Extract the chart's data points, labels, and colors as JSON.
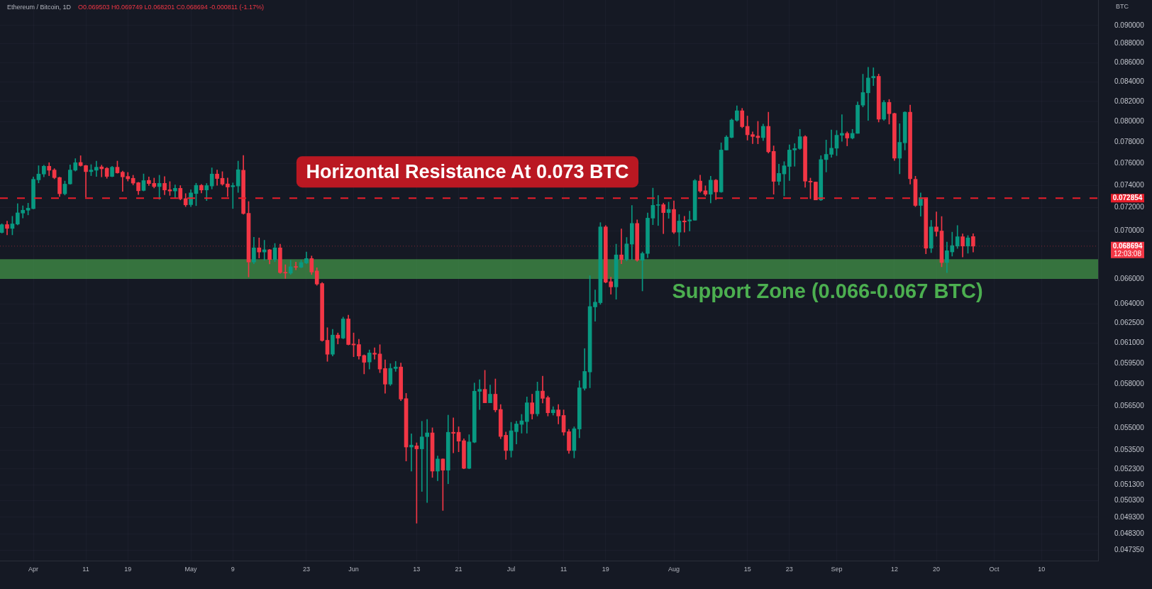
{
  "chart_data": {
    "type": "candlestick",
    "title": "Ethereum / Bitcoin, 1D",
    "subtitle": "O0.069503 H0.069749 L0.068201 C0.068694 -0.000811 (-1.17%)",
    "ylabel": "BTC",
    "x": [
      "--03-26",
      "--03-27",
      "--03-28",
      "--03-29",
      "--03-30",
      "--03-31",
      "--04-01",
      "--04-02",
      "--04-03",
      "--04-04",
      "--04-05",
      "--04-06",
      "--04-07",
      "--04-08",
      "--04-09",
      "--04-10",
      "--04-11",
      "--04-12",
      "--04-13",
      "--04-14",
      "--04-15",
      "--04-16",
      "--04-17",
      "--04-18",
      "--04-19",
      "--04-20",
      "--04-21",
      "--04-22",
      "--04-23",
      "--04-24",
      "--04-25",
      "--04-26",
      "--04-27",
      "--04-28",
      "--04-29",
      "--04-30",
      "--05-01",
      "--05-02",
      "--05-03",
      "--05-04",
      "--05-05",
      "--05-06",
      "--05-07",
      "--05-08",
      "--05-09",
      "--05-10",
      "--05-11",
      "--05-12",
      "--05-13",
      "--05-14",
      "--05-15",
      "--05-16",
      "--05-17",
      "--05-18",
      "--05-19",
      "--05-20",
      "--05-21",
      "--05-22",
      "--05-23",
      "--05-24",
      "--05-25",
      "--05-26",
      "--05-27",
      "--05-28",
      "--05-29",
      "--05-30",
      "--05-31",
      "--06-01",
      "--06-02",
      "--06-03",
      "--06-04",
      "--06-05",
      "--06-06",
      "--06-07",
      "--06-08",
      "--06-09",
      "--06-10",
      "--06-11",
      "--06-12",
      "--06-13",
      "--06-14",
      "--06-15",
      "--06-16",
      "--06-17",
      "--06-18",
      "--06-19",
      "--06-20",
      "--06-21",
      "--06-22",
      "--06-23",
      "--06-24",
      "--06-25",
      "--06-26",
      "--06-27",
      "--06-28",
      "--06-29",
      "--06-30",
      "--07-01",
      "--07-02",
      "--07-03",
      "--07-04",
      "--07-05",
      "--07-06",
      "--07-07",
      "--07-08",
      "--07-09",
      "--07-10",
      "--07-11",
      "--07-12",
      "--07-13",
      "--07-14",
      "--07-15",
      "--07-16",
      "--07-17",
      "--07-18",
      "--07-19",
      "--07-20",
      "--07-21",
      "--07-22",
      "--07-23",
      "--07-24",
      "--07-25",
      "--07-26",
      "--07-27",
      "--07-28",
      "--07-29",
      "--07-30",
      "--07-31",
      "--08-01",
      "--08-02",
      "--08-03",
      "--08-04",
      "--08-05",
      "--08-06",
      "--08-07",
      "--08-08",
      "--08-09",
      "--08-10",
      "--08-11",
      "--08-12",
      "--08-13",
      "--08-14",
      "--08-15",
      "--08-16",
      "--08-17",
      "--08-18",
      "--08-19",
      "--08-20",
      "--08-21",
      "--08-22",
      "--08-23",
      "--08-24",
      "--08-25",
      "--08-26",
      "--08-27",
      "--08-28",
      "--08-29",
      "--08-30",
      "--08-31",
      "--09-01",
      "--09-02",
      "--09-03",
      "--09-04",
      "--09-05",
      "--09-06",
      "--09-07",
      "--09-08",
      "--09-09",
      "--09-10",
      "--09-11",
      "--09-12",
      "--09-13",
      "--09-14",
      "--09-15",
      "--09-16",
      "--09-17",
      "--09-18",
      "--09-19",
      "--09-20",
      "--09-21",
      "--09-22",
      "--09-23",
      "--09-24",
      "--09-25",
      "--09-26",
      "--09-27"
    ],
    "ohlc": [
      [
        0.06985,
        0.0706,
        0.0698,
        0.07052
      ],
      [
        0.07053,
        0.07083,
        0.06965,
        0.0702
      ],
      [
        0.0702,
        0.07125,
        0.06965,
        0.07059
      ],
      [
        0.07057,
        0.07236,
        0.0705,
        0.07155
      ],
      [
        0.07153,
        0.07217,
        0.0711,
        0.07178
      ],
      [
        0.07178,
        0.0724,
        0.07137,
        0.07196
      ],
      [
        0.07192,
        0.07477,
        0.0719,
        0.07455
      ],
      [
        0.0745,
        0.0758,
        0.07422,
        0.07503
      ],
      [
        0.07503,
        0.07585,
        0.07477,
        0.07575
      ],
      [
        0.07575,
        0.07608,
        0.07488,
        0.07538
      ],
      [
        0.0754,
        0.07553,
        0.07459,
        0.0747
      ],
      [
        0.07471,
        0.07475,
        0.07299,
        0.07324
      ],
      [
        0.07324,
        0.07439,
        0.07313,
        0.07411
      ],
      [
        0.07413,
        0.07588,
        0.07409,
        0.0754
      ],
      [
        0.07538,
        0.07646,
        0.0753,
        0.07608
      ],
      [
        0.0761,
        0.07673,
        0.07575,
        0.07581
      ],
      [
        0.07581,
        0.07585,
        0.07295,
        0.07525
      ],
      [
        0.07525,
        0.0759,
        0.07488,
        0.0754
      ],
      [
        0.07538,
        0.07623,
        0.07481,
        0.07566
      ],
      [
        0.07569,
        0.07585,
        0.07477,
        0.07551
      ],
      [
        0.07556,
        0.07564,
        0.07464,
        0.07481
      ],
      [
        0.07481,
        0.07575,
        0.07477,
        0.07566
      ],
      [
        0.07566,
        0.07623,
        0.0751,
        0.07514
      ],
      [
        0.0752,
        0.0753,
        0.07345,
        0.07477
      ],
      [
        0.07481,
        0.07518,
        0.07439,
        0.07459
      ],
      [
        0.07464,
        0.07492,
        0.07404,
        0.0742
      ],
      [
        0.07424,
        0.07428,
        0.07317,
        0.07351
      ],
      [
        0.07354,
        0.07504,
        0.07349,
        0.07443
      ],
      [
        0.07445,
        0.07477,
        0.07398,
        0.07416
      ],
      [
        0.07418,
        0.07466,
        0.07376,
        0.07389
      ],
      [
        0.07389,
        0.07492,
        0.07274,
        0.07418
      ],
      [
        0.07418,
        0.07479,
        0.07315,
        0.07358
      ],
      [
        0.0736,
        0.07434,
        0.07309,
        0.07349
      ],
      [
        0.07349,
        0.07404,
        0.07284,
        0.07373
      ],
      [
        0.07373,
        0.07398,
        0.07269,
        0.07278
      ],
      [
        0.07281,
        0.07326,
        0.0721,
        0.07225
      ],
      [
        0.07227,
        0.0736,
        0.0721,
        0.07332
      ],
      [
        0.07326,
        0.07419,
        0.07218,
        0.074
      ],
      [
        0.074,
        0.07409,
        0.07332,
        0.07358
      ],
      [
        0.07358,
        0.07417,
        0.07263,
        0.07398
      ],
      [
        0.07394,
        0.0756,
        0.07367,
        0.07503
      ],
      [
        0.07503,
        0.0754,
        0.074,
        0.07462
      ],
      [
        0.07464,
        0.07525,
        0.074,
        0.07411
      ],
      [
        0.07413,
        0.07466,
        0.07299,
        0.07385
      ],
      [
        0.07387,
        0.07422,
        0.07193,
        0.07398
      ],
      [
        0.07394,
        0.07623,
        0.07336,
        0.07543
      ],
      [
        0.07538,
        0.07675,
        0.07143,
        0.07149
      ],
      [
        0.07151,
        0.07255,
        0.06615,
        0.06737
      ],
      [
        0.06737,
        0.06945,
        0.06723,
        0.06855
      ],
      [
        0.06855,
        0.06939,
        0.0677,
        0.0682
      ],
      [
        0.0682,
        0.06919,
        0.06752,
        0.06839
      ],
      [
        0.06839,
        0.06843,
        0.06722,
        0.06758
      ],
      [
        0.06757,
        0.06892,
        0.0674,
        0.06855
      ],
      [
        0.06855,
        0.06886,
        0.06645,
        0.06651
      ],
      [
        0.06653,
        0.06715,
        0.06603,
        0.06647
      ],
      [
        0.06646,
        0.06752,
        0.06635,
        0.06698
      ],
      [
        0.06698,
        0.06737,
        0.06674,
        0.06694
      ],
      [
        0.06694,
        0.06752,
        0.0669,
        0.06733
      ],
      [
        0.0673,
        0.06821,
        0.06723,
        0.06766
      ],
      [
        0.06766,
        0.06787,
        0.06635,
        0.06655
      ],
      [
        0.06664,
        0.0669,
        0.06548,
        0.06558
      ],
      [
        0.06562,
        0.06571,
        0.06115,
        0.0612
      ],
      [
        0.06122,
        0.06217,
        0.05966,
        0.06018
      ],
      [
        0.06018,
        0.06205,
        0.06005,
        0.06161
      ],
      [
        0.06161,
        0.06177,
        0.06094,
        0.06138
      ],
      [
        0.06138,
        0.06298,
        0.06133,
        0.06284
      ],
      [
        0.06284,
        0.06313,
        0.06087,
        0.0609
      ],
      [
        0.06094,
        0.06177,
        0.06,
        0.06087
      ],
      [
        0.0609,
        0.06129,
        0.05982,
        0.06005
      ],
      [
        0.06009,
        0.06014,
        0.05875,
        0.05959
      ],
      [
        0.05961,
        0.0605,
        0.0591,
        0.06028
      ],
      [
        0.06026,
        0.06066,
        0.05982,
        0.06018
      ],
      [
        0.0602,
        0.06089,
        0.05884,
        0.0591
      ],
      [
        0.05914,
        0.05977,
        0.05738,
        0.05802
      ],
      [
        0.05802,
        0.05949,
        0.05792,
        0.05915
      ],
      [
        0.05914,
        0.05966,
        0.05893,
        0.05925
      ],
      [
        0.05925,
        0.05954,
        0.05686,
        0.05697
      ],
      [
        0.057,
        0.05737,
        0.05281,
        0.05372
      ],
      [
        0.05372,
        0.0546,
        0.05216,
        0.05385
      ],
      [
        0.0538,
        0.054,
        0.04894,
        0.0536
      ],
      [
        0.0536,
        0.05544,
        0.05088,
        0.05439
      ],
      [
        0.05441,
        0.05557,
        0.05019,
        0.05466
      ],
      [
        0.05466,
        0.055,
        0.05176,
        0.05216
      ],
      [
        0.05216,
        0.05314,
        0.05155,
        0.05294
      ],
      [
        0.05294,
        0.05296,
        0.04971,
        0.05222
      ],
      [
        0.05222,
        0.05586,
        0.05136,
        0.0547
      ],
      [
        0.0547,
        0.05568,
        0.05334,
        0.05463
      ],
      [
        0.0547,
        0.05507,
        0.05341,
        0.05411
      ],
      [
        0.05414,
        0.05427,
        0.05231,
        0.05234
      ],
      [
        0.05234,
        0.05454,
        0.05231,
        0.05406
      ],
      [
        0.05404,
        0.0581,
        0.054,
        0.05752
      ],
      [
        0.05751,
        0.05834,
        0.05624,
        0.05765
      ],
      [
        0.05765,
        0.05901,
        0.05671,
        0.05671
      ],
      [
        0.05671,
        0.05796,
        0.05671,
        0.05731
      ],
      [
        0.05731,
        0.05839,
        0.05608,
        0.05622
      ],
      [
        0.05625,
        0.05659,
        0.05427,
        0.05442
      ],
      [
        0.0545,
        0.05471,
        0.05291,
        0.05349
      ],
      [
        0.05349,
        0.05537,
        0.05306,
        0.0548
      ],
      [
        0.05474,
        0.05544,
        0.05392,
        0.05526
      ],
      [
        0.05523,
        0.05591,
        0.05464,
        0.05547
      ],
      [
        0.05542,
        0.05712,
        0.05464,
        0.05671
      ],
      [
        0.05671,
        0.05731,
        0.05559,
        0.05595
      ],
      [
        0.05595,
        0.05817,
        0.0558,
        0.05753
      ],
      [
        0.05753,
        0.05859,
        0.05669,
        0.05702
      ],
      [
        0.05707,
        0.05718,
        0.0558,
        0.05602
      ],
      [
        0.05602,
        0.05644,
        0.05586,
        0.05622
      ],
      [
        0.05622,
        0.05659,
        0.05526,
        0.0558
      ],
      [
        0.05584,
        0.05622,
        0.0545,
        0.05471
      ],
      [
        0.05474,
        0.0549,
        0.05331,
        0.05349
      ],
      [
        0.05349,
        0.05507,
        0.05301,
        0.05494
      ],
      [
        0.05492,
        0.05826,
        0.05433,
        0.05776
      ],
      [
        0.05772,
        0.0606,
        0.05759,
        0.05893
      ],
      [
        0.05889,
        0.06625,
        0.05776,
        0.0638
      ],
      [
        0.06377,
        0.06511,
        0.06266,
        0.06414
      ],
      [
        0.0641,
        0.0707,
        0.06397,
        0.07033
      ],
      [
        0.07033,
        0.07045,
        0.06567,
        0.06573
      ],
      [
        0.06577,
        0.06613,
        0.06477,
        0.06535
      ],
      [
        0.06535,
        0.06886,
        0.06437,
        0.06796
      ],
      [
        0.06796,
        0.07016,
        0.06723,
        0.06757
      ],
      [
        0.06757,
        0.06943,
        0.06747,
        0.06888
      ],
      [
        0.06886,
        0.0722,
        0.06757,
        0.07063
      ],
      [
        0.07063,
        0.07094,
        0.06743,
        0.06752
      ],
      [
        0.06752,
        0.06821,
        0.06503,
        0.06808
      ],
      [
        0.06808,
        0.07154,
        0.06772,
        0.07109
      ],
      [
        0.07109,
        0.07375,
        0.07052,
        0.07221
      ],
      [
        0.07221,
        0.07309,
        0.07045,
        0.07227
      ],
      [
        0.07227,
        0.07241,
        0.06975,
        0.07157
      ],
      [
        0.07157,
        0.0725,
        0.07107,
        0.07185
      ],
      [
        0.07185,
        0.0726,
        0.06975,
        0.06988
      ],
      [
        0.06988,
        0.0714,
        0.06871,
        0.07084
      ],
      [
        0.07084,
        0.07125,
        0.06988,
        0.07076
      ],
      [
        0.07084,
        0.0717,
        0.06998,
        0.07094
      ],
      [
        0.07091,
        0.07454,
        0.0709,
        0.07443
      ],
      [
        0.07439,
        0.07492,
        0.07336,
        0.07348
      ],
      [
        0.07351,
        0.07396,
        0.07305,
        0.0732
      ],
      [
        0.0732,
        0.07483,
        0.07242,
        0.07447
      ],
      [
        0.07447,
        0.07454,
        0.07272,
        0.07341
      ],
      [
        0.07341,
        0.07795,
        0.07336,
        0.07727
      ],
      [
        0.07727,
        0.07864,
        0.07727,
        0.0785
      ],
      [
        0.07847,
        0.08027,
        0.07842,
        0.08016
      ],
      [
        0.08013,
        0.08157,
        0.08004,
        0.08107
      ],
      [
        0.08107,
        0.08131,
        0.0794,
        0.07951
      ],
      [
        0.07954,
        0.08055,
        0.07821,
        0.07872
      ],
      [
        0.07874,
        0.07901,
        0.07788,
        0.07856
      ],
      [
        0.0786,
        0.08003,
        0.07786,
        0.07845
      ],
      [
        0.07845,
        0.07977,
        0.07817,
        0.07954
      ],
      [
        0.07954,
        0.08093,
        0.07698,
        0.0771
      ],
      [
        0.07714,
        0.07766,
        0.0732,
        0.07436
      ],
      [
        0.07436,
        0.07594,
        0.07404,
        0.07509
      ],
      [
        0.07504,
        0.07618,
        0.07305,
        0.07579
      ],
      [
        0.07573,
        0.07777,
        0.07443,
        0.07727
      ],
      [
        0.07727,
        0.07788,
        0.07575,
        0.07741
      ],
      [
        0.07741,
        0.07925,
        0.07732,
        0.07854
      ],
      [
        0.07854,
        0.07864,
        0.07383,
        0.07438
      ],
      [
        0.07438,
        0.07466,
        0.0728,
        0.0743
      ],
      [
        0.0743,
        0.07432,
        0.07269,
        0.07269
      ],
      [
        0.07269,
        0.07674,
        0.07263,
        0.07637
      ],
      [
        0.07637,
        0.07822,
        0.07522,
        0.07686
      ],
      [
        0.07686,
        0.07919,
        0.07659,
        0.07744
      ],
      [
        0.07744,
        0.07914,
        0.07674,
        0.07868
      ],
      [
        0.07868,
        0.08069,
        0.0781,
        0.07886
      ],
      [
        0.07886,
        0.07901,
        0.07766,
        0.07841
      ],
      [
        0.07841,
        0.07925,
        0.07832,
        0.07886
      ],
      [
        0.07886,
        0.08195,
        0.07886,
        0.08163
      ],
      [
        0.08163,
        0.08478,
        0.08145,
        0.0829
      ],
      [
        0.08287,
        0.0855,
        0.08012,
        0.08439
      ],
      [
        0.0844,
        0.08545,
        0.0836,
        0.08456
      ],
      [
        0.08456,
        0.0848,
        0.07996,
        0.08024
      ],
      [
        0.08024,
        0.0821,
        0.08012,
        0.08191
      ],
      [
        0.08191,
        0.0822,
        0.07976,
        0.08078
      ],
      [
        0.0808,
        0.08085,
        0.07628,
        0.0765
      ],
      [
        0.0765,
        0.0798,
        0.07505,
        0.078
      ],
      [
        0.07795,
        0.08098,
        0.07727,
        0.08093
      ],
      [
        0.08093,
        0.08163,
        0.07411,
        0.0746
      ],
      [
        0.07455,
        0.07483,
        0.0721,
        0.0722
      ],
      [
        0.0722,
        0.07332,
        0.07125,
        0.0729
      ],
      [
        0.0729,
        0.0729,
        0.06805,
        0.06852
      ],
      [
        0.06852,
        0.0709,
        0.06815,
        0.07033
      ],
      [
        0.07033,
        0.07163,
        0.06953,
        0.06994
      ],
      [
        0.06998,
        0.07123,
        0.06698,
        0.06733
      ],
      [
        0.06733,
        0.06904,
        0.06651,
        0.06831
      ],
      [
        0.06821,
        0.06988,
        0.06786,
        0.06874
      ],
      [
        0.0687,
        0.07045,
        0.0685,
        0.06949
      ],
      [
        0.06949,
        0.06973,
        0.06778,
        0.0687
      ],
      [
        0.0687,
        0.06959,
        0.0681,
        0.06939
      ],
      [
        0.069503,
        0.069749,
        0.068201,
        0.068694
      ]
    ],
    "colors": [
      "#089981",
      "#f23645",
      "#089981",
      "#089981",
      "#089981",
      "#089981",
      "#089981",
      "#089981",
      "#089981",
      "#f23645",
      "#f23645",
      "#f23645",
      "#089981",
      "#089981",
      "#089981",
      "#f23645",
      "#f23645",
      "#089981",
      "#089981",
      "#f23645",
      "#f23645",
      "#089981",
      "#f23645",
      "#f23645",
      "#f23645",
      "#f23645",
      "#f23645",
      "#089981",
      "#f23645",
      "#f23645",
      "#089981",
      "#f23645",
      "#f23645",
      "#089981",
      "#f23645",
      "#f23645",
      "#089981",
      "#089981",
      "#f23645",
      "#089981",
      "#089981",
      "#f23645",
      "#f23645",
      "#f23645",
      "#089981",
      "#089981",
      "#f23645",
      "#f23645",
      "#089981",
      "#f23645",
      "#089981",
      "#f23645",
      "#089981",
      "#f23645",
      "#f23645",
      "#089981",
      "#f23645",
      "#089981",
      "#089981",
      "#f23645",
      "#f23645",
      "#f23645",
      "#f23645",
      "#089981",
      "#f23645",
      "#089981",
      "#f23645",
      "#f23645",
      "#f23645",
      "#f23645",
      "#089981",
      "#f23645",
      "#f23645",
      "#f23645",
      "#089981",
      "#089981",
      "#f23645",
      "#f23645",
      "#089981",
      "#f23645",
      "#089981",
      "#089981",
      "#f23645",
      "#089981",
      "#f23645",
      "#089981",
      "#f23645",
      "#f23645",
      "#f23645",
      "#089981",
      "#089981",
      "#089981",
      "#f23645",
      "#089981",
      "#f23645",
      "#f23645",
      "#f23645",
      "#089981",
      "#089981",
      "#089981",
      "#089981",
      "#f23645",
      "#089981",
      "#f23645",
      "#f23645",
      "#089981",
      "#f23645",
      "#f23645",
      "#f23645",
      "#089981",
      "#089981",
      "#089981",
      "#089981",
      "#089981",
      "#089981",
      "#f23645",
      "#f23645",
      "#089981",
      "#f23645",
      "#089981",
      "#089981",
      "#f23645",
      "#089981",
      "#089981",
      "#089981",
      "#089981",
      "#f23645",
      "#089981",
      "#f23645",
      "#089981",
      "#f23645",
      "#089981",
      "#089981",
      "#f23645",
      "#f23645",
      "#089981",
      "#f23645",
      "#089981",
      "#089981",
      "#089981",
      "#089981",
      "#f23645",
      "#f23645",
      "#f23645",
      "#f23645",
      "#089981",
      "#f23645",
      "#f23645",
      "#089981",
      "#089981",
      "#089981",
      "#089981",
      "#089981",
      "#f23645",
      "#f23645",
      "#f23645",
      "#089981",
      "#089981",
      "#089981",
      "#089981",
      "#089981",
      "#f23645",
      "#089981",
      "#089981",
      "#089981",
      "#089981",
      "#089981",
      "#f23645",
      "#089981",
      "#f23645",
      "#f23645",
      "#089981",
      "#089981",
      "#f23645",
      "#f23645",
      "#089981",
      "#f23645",
      "#089981",
      "#f23645",
      "#f23645",
      "#089981",
      "#089981",
      "#089981",
      "#f23645",
      "#089981",
      "#f23645"
    ],
    "xlim": [
      "--03-25T15:30",
      "--10-20T19:00"
    ],
    "xticks": [
      {
        "value": "--04-01",
        "label": "Apr"
      },
      {
        "value": "--04-11",
        "label": "11"
      },
      {
        "value": "--04-19",
        "label": "19"
      },
      {
        "value": "--05-01",
        "label": "May"
      },
      {
        "value": "--05-09",
        "label": "9"
      },
      {
        "value": "--05-23",
        "label": "23"
      },
      {
        "value": "--06-01",
        "label": "Jun"
      },
      {
        "value": "--06-13",
        "label": "13"
      },
      {
        "value": "--06-21",
        "label": "21"
      },
      {
        "value": "--07-01",
        "label": "Jul"
      },
      {
        "value": "--07-11",
        "label": "11"
      },
      {
        "value": "--07-19",
        "label": "19"
      },
      {
        "value": "--08-01",
        "label": "Aug"
      },
      {
        "value": "--08-15",
        "label": "15"
      },
      {
        "value": "--08-23",
        "label": "23"
      },
      {
        "value": "--09-01",
        "label": "Sep"
      },
      {
        "value": "--09-12",
        "label": "12"
      },
      {
        "value": "--09-20",
        "label": "20"
      },
      {
        "value": "--10-01",
        "label": "Oct"
      },
      {
        "value": "--10-10",
        "label": "10"
      }
    ],
    "ylim": [
      0.04675,
      0.09284
    ],
    "yticks": [
      {
        "value": 0.09,
        "label": "0.090000"
      },
      {
        "value": 0.088,
        "label": "0.088000"
      },
      {
        "value": 0.086,
        "label": "0.086000"
      },
      {
        "value": 0.084,
        "label": "0.084000"
      },
      {
        "value": 0.082,
        "label": "0.082000"
      },
      {
        "value": 0.08,
        "label": "0.080000"
      },
      {
        "value": 0.078,
        "label": "0.078000"
      },
      {
        "value": 0.076,
        "label": "0.076000"
      },
      {
        "value": 0.074,
        "label": "0.074000"
      },
      {
        "value": 0.072,
        "label": "0.072000"
      },
      {
        "value": 0.07,
        "label": "0.070000"
      },
      {
        "value": 0.066,
        "label": "0.066000"
      },
      {
        "value": 0.064,
        "label": "0.064000"
      },
      {
        "value": 0.0625,
        "label": "0.062500"
      },
      {
        "value": 0.061,
        "label": "0.061000"
      },
      {
        "value": 0.0595,
        "label": "0.059500"
      },
      {
        "value": 0.058,
        "label": "0.058000"
      },
      {
        "value": 0.0565,
        "label": "0.056500"
      },
      {
        "value": 0.055,
        "label": "0.055000"
      },
      {
        "value": 0.0535,
        "label": "0.053500"
      },
      {
        "value": 0.0523,
        "label": "0.052300"
      },
      {
        "value": 0.0513,
        "label": "0.051300"
      },
      {
        "value": 0.0503,
        "label": "0.050300"
      },
      {
        "value": 0.0493,
        "label": "0.049300"
      },
      {
        "value": 0.0483,
        "label": "0.048300"
      },
      {
        "value": 0.04735,
        "label": "0.047350"
      }
    ],
    "log": true,
    "grid": true,
    "bands": [
      {
        "axis": "y",
        "from": 0.066,
        "to": 0.0676,
        "label": "Support Zone (0.066-0.067 BTC)",
        "color": "#4caf50"
      }
    ],
    "ref_lines": [
      {
        "axis": "y",
        "value": 0.072854,
        "label": "Horizontal Resistance At 0.073 BTC",
        "color": "#e91e2b",
        "line_style": "dashed"
      },
      {
        "axis": "y",
        "value": 0.068694,
        "color": "#f23645",
        "line_style": "dotted"
      }
    ],
    "annotations": [
      "0.072854",
      "0.068694",
      "12:03:08"
    ]
  }
}
